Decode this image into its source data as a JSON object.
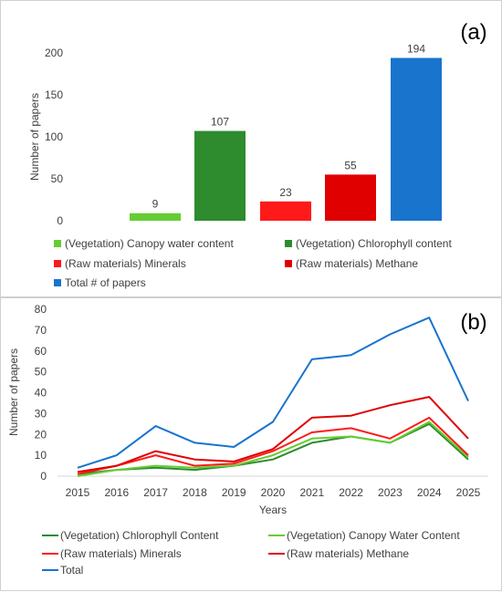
{
  "colors": {
    "canopy": "#66cc33",
    "chlorophyll": "#2e8b2e",
    "minerals": "#ff1a1a",
    "methane": "#e00000",
    "total": "#1874cd",
    "axis_text": "#404040",
    "gridline": "#d9d9d9"
  },
  "chart_data": [
    {
      "type": "bar",
      "panel_label": "(a)",
      "ylabel": "Number of papers",
      "ylim": [
        0,
        200
      ],
      "yticks": [
        0,
        50,
        100,
        150,
        200
      ],
      "grid": false,
      "legend_position": "bottom",
      "series": [
        {
          "name": "(Vegetation) Canopy water content",
          "value": 9,
          "color": "#66cc33"
        },
        {
          "name": "(Vegetation) Chlorophyll content",
          "value": 107,
          "color": "#2e8b2e"
        },
        {
          "name": "(Raw materials) Minerals",
          "value": 23,
          "color": "#ff1a1a"
        },
        {
          "name": "(Raw materials) Methane",
          "value": 55,
          "color": "#e00000"
        },
        {
          "name": "Total # of papers",
          "value": 194,
          "color": "#1874cd"
        }
      ]
    },
    {
      "type": "line",
      "panel_label": "(b)",
      "xlabel": "Years",
      "ylabel": "Number of papers",
      "ylim": [
        0,
        80
      ],
      "yticks": [
        0,
        10,
        20,
        30,
        40,
        50,
        60,
        70,
        80
      ],
      "grid": false,
      "legend_position": "bottom",
      "x": [
        2015,
        2016,
        2017,
        2018,
        2019,
        2020,
        2021,
        2022,
        2023,
        2024,
        2025
      ],
      "series": [
        {
          "name": "(Vegetation) Chlorophyll Content",
          "color": "#2e8b2e",
          "values": [
            1,
            3,
            4,
            3,
            5,
            8,
            16,
            19,
            16,
            25,
            8
          ]
        },
        {
          "name": "(Vegetation) Canopy Water Content",
          "color": "#66cc33",
          "values": [
            0,
            3,
            5,
            4,
            5,
            10,
            18,
            19,
            16,
            26,
            9
          ]
        },
        {
          "name": "(Raw materials) Minerals",
          "color": "#ff1a1a",
          "values": [
            1,
            5,
            10,
            5,
            6,
            12,
            21,
            23,
            18,
            28,
            10
          ]
        },
        {
          "name": "(Raw materials) Methane",
          "color": "#e00000",
          "values": [
            2,
            5,
            12,
            8,
            7,
            13,
            28,
            29,
            34,
            38,
            18
          ]
        },
        {
          "name": "Total",
          "color": "#1874cd",
          "values": [
            4,
            10,
            24,
            16,
            14,
            26,
            56,
            58,
            68,
            76,
            36
          ]
        }
      ]
    }
  ]
}
